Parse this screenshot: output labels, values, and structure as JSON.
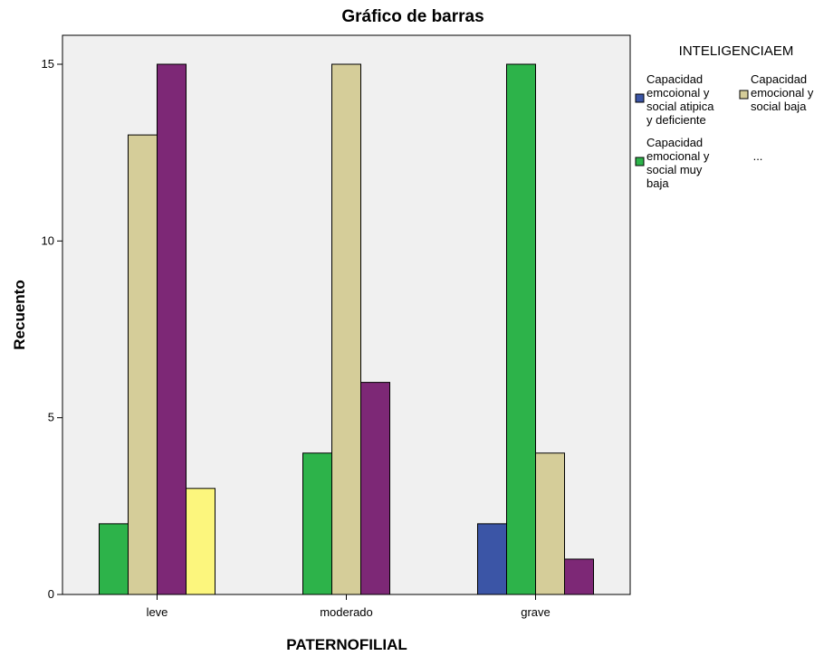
{
  "chart_data": {
    "type": "bar",
    "title": "Gráfico de barras",
    "xlabel": "PATERNOFILIAL",
    "ylabel": "Recuento",
    "categories": [
      "leve",
      "moderado",
      "grave"
    ],
    "ylim": [
      0,
      15
    ],
    "yticks": [
      0,
      5,
      10,
      15
    ],
    "grid": false,
    "background": "#f0f0f0",
    "legend": {
      "title": "INTELIGENCIAEM",
      "placement": "right",
      "more_indicator": "..."
    },
    "series": [
      {
        "name": "Capacidad emcoional y social atipica y deficiente",
        "legend_lines": [
          "Capacidad",
          "emcoional y",
          "social atipica",
          "y deficiente"
        ],
        "color": "#3b55a6",
        "values": [
          0,
          0,
          2
        ]
      },
      {
        "name": "Capacidad emocional y social muy baja",
        "legend_lines": [
          "Capacidad",
          "emocional y",
          "social muy",
          "baja"
        ],
        "color": "#2db34a",
        "values": [
          2,
          4,
          15
        ]
      },
      {
        "name": "Capacidad emocional y social baja",
        "legend_lines": [
          "Capacidad",
          "emocional y",
          "social baja"
        ],
        "color": "#d5cd99",
        "values": [
          13,
          15,
          4
        ]
      },
      {
        "name": "",
        "color": "#7d2876",
        "values": [
          15,
          6,
          1
        ]
      },
      {
        "name": "",
        "color": "#fcf67d",
        "values": [
          3,
          0,
          0
        ]
      }
    ]
  }
}
